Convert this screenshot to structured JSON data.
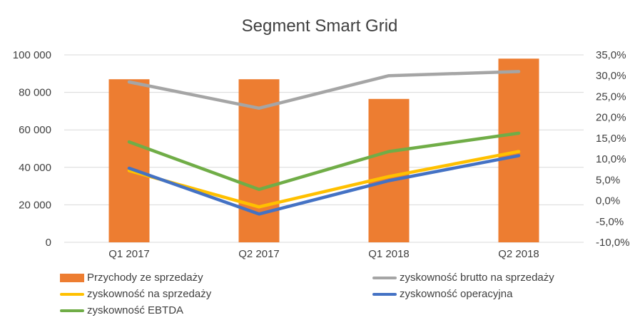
{
  "chart_data": {
    "type": "bar",
    "title": "Segment Smart Grid",
    "categories": [
      "Q1 2017",
      "Q2 2017",
      "Q1 2018",
      "Q2 2018"
    ],
    "left_axis": {
      "ylim": [
        0,
        100000
      ],
      "ticks": [
        0,
        20000,
        40000,
        60000,
        80000,
        100000
      ],
      "tick_labels": [
        "0",
        "20 000",
        "40 000",
        "60 000",
        "80 000",
        "100 000"
      ]
    },
    "right_axis": {
      "ylim": [
        -10,
        35
      ],
      "ticks": [
        -10,
        -5,
        0,
        5,
        10,
        15,
        20,
        25,
        30,
        35
      ],
      "tick_labels": [
        "-10,0%",
        "-5,0%",
        "0,0%",
        "5,0%",
        "10,0%",
        "15,0%",
        "20,0%",
        "25,0%",
        "30,0%",
        "35,0%"
      ]
    },
    "grid": true,
    "legend_position": "bottom",
    "series": [
      {
        "name": "Przychody ze sprzedaży",
        "kind": "bar",
        "axis": "left",
        "color": "#ED7D31",
        "values": [
          87000,
          87000,
          76500,
          98000
        ]
      },
      {
        "name": "zyskowność brutto na sprzedaży",
        "kind": "line",
        "axis": "right",
        "color": "#A5A5A5",
        "values": [
          28.5,
          22.2,
          30.0,
          31.0
        ]
      },
      {
        "name": "zyskowność na sprzedaży",
        "kind": "line",
        "axis": "right",
        "color": "#FFC000",
        "values": [
          7.2,
          -1.5,
          5.8,
          11.8
        ]
      },
      {
        "name": "zyskowność operacyjna",
        "kind": "line",
        "axis": "right",
        "color": "#4472C4",
        "values": [
          7.8,
          -3.2,
          4.8,
          10.8
        ]
      },
      {
        "name": "zyskowność EBTDA",
        "kind": "line",
        "axis": "right",
        "color": "#70AD47",
        "values": [
          14.1,
          2.7,
          11.8,
          16.2
        ]
      }
    ]
  }
}
